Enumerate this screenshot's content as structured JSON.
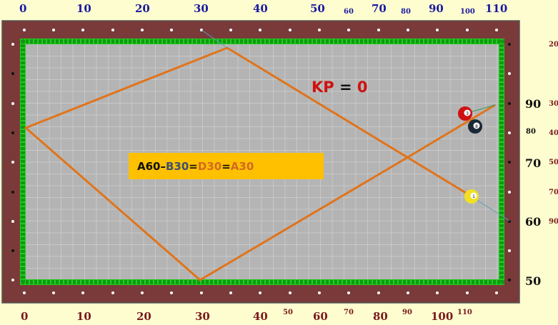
{
  "top_scale": [
    "0",
    "10",
    "20",
    "30",
    "40",
    "50",
    "60",
    "70",
    "80",
    "90",
    "100",
    "110"
  ],
  "bottom_scale": [
    "0",
    "10",
    "20",
    "30",
    "40",
    "50",
    "60",
    "70",
    "80",
    "90",
    "100",
    "110"
  ],
  "right_major": [
    "90",
    "70",
    "60",
    "50"
  ],
  "right_inner_minor": [
    "80"
  ],
  "right_outer_minor": [
    "20",
    "30",
    "40",
    "50",
    "70",
    "90"
  ],
  "kp": {
    "label": "KP",
    "eq": " = ",
    "value": "0"
  },
  "formula": {
    "a": "A60",
    "dash": " – ",
    "b": "B30",
    "eq1": " = ",
    "d": "D30",
    "eq2": " = ",
    "e": "A30"
  },
  "balls": [
    {
      "name": "ball-3",
      "number": "3",
      "color": "#d01010"
    },
    {
      "name": "ball-8",
      "number": "8",
      "color": "#1c2836"
    },
    {
      "name": "ball-1",
      "number": "1",
      "color": "#f0e020"
    }
  ],
  "colors": {
    "rail": "#7a3a3a",
    "cushion": "#22cc22",
    "cloth": "#b4b4b4",
    "path": "#e0741c",
    "formula_bg": "#ffc000",
    "kp_label": "#d01010",
    "formula_a": "#111111",
    "formula_b": "#3a5070",
    "formula_d": "#d06a20",
    "formula_e": "#d06a20"
  }
}
